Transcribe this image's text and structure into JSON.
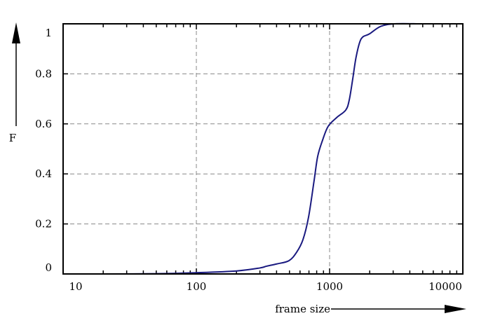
{
  "chart_data": {
    "type": "line",
    "title": "",
    "xlabel": "frame size",
    "ylabel": "F",
    "xscale": "log",
    "xlim": [
      10,
      10000
    ],
    "ylim": [
      0,
      1
    ],
    "grid": true,
    "x_ticks": [
      10,
      100,
      1000,
      10000
    ],
    "x_tick_labels": [
      "10",
      "100",
      "1000",
      "10000"
    ],
    "y_ticks": [
      0,
      0.2,
      0.4,
      0.6,
      0.8,
      1
    ],
    "y_tick_labels": [
      "0",
      "0.2",
      "0.4",
      "0.6",
      "0.8",
      "1"
    ],
    "line_color": "#1a1a80",
    "series": [
      {
        "x": [
          20,
          50,
          100,
          200,
          300,
          336,
          400,
          495,
          566,
          631,
          695,
          766,
          814,
          886,
          975,
          1129,
          1321,
          1404,
          1492,
          1585,
          1726,
          1995,
          2423,
          3085,
          4660
        ],
        "y": [
          0,
          0.001,
          0.005,
          0.012,
          0.024,
          0.031,
          0.04,
          0.053,
          0.087,
          0.137,
          0.227,
          0.375,
          0.47,
          0.535,
          0.59,
          0.625,
          0.655,
          0.695,
          0.78,
          0.87,
          0.94,
          0.96,
          0.99,
          1.0,
          1.0
        ]
      }
    ]
  }
}
